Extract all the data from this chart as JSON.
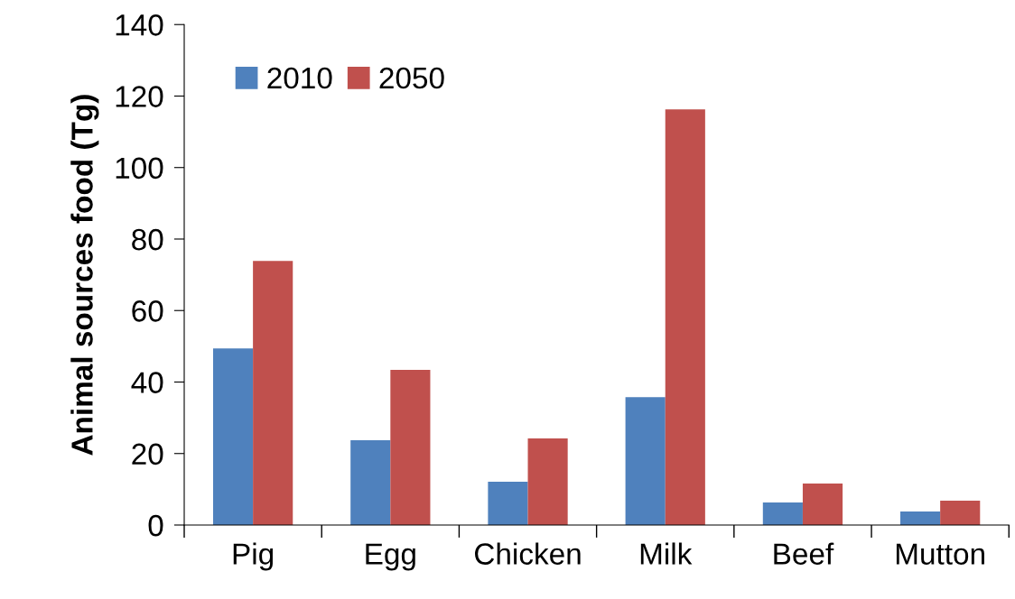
{
  "chart_data": {
    "type": "bar",
    "ylabel": "Animal sources food (Tg)",
    "categories": [
      "Pig",
      "Egg",
      "Chicken",
      "Milk",
      "Beef",
      "Mutton"
    ],
    "series": [
      {
        "name": "2010",
        "color": "#4f81bd",
        "values": [
          49.4,
          23.7,
          12.1,
          35.8,
          6.3,
          3.8
        ]
      },
      {
        "name": "2050",
        "color": "#c0504d",
        "values": [
          73.9,
          43.4,
          24.2,
          116.3,
          11.6,
          6.8
        ]
      }
    ],
    "ylim": [
      0,
      140
    ],
    "yticks": [
      0,
      20,
      40,
      60,
      80,
      100,
      120,
      140
    ],
    "grid": false,
    "legend": "top left"
  }
}
